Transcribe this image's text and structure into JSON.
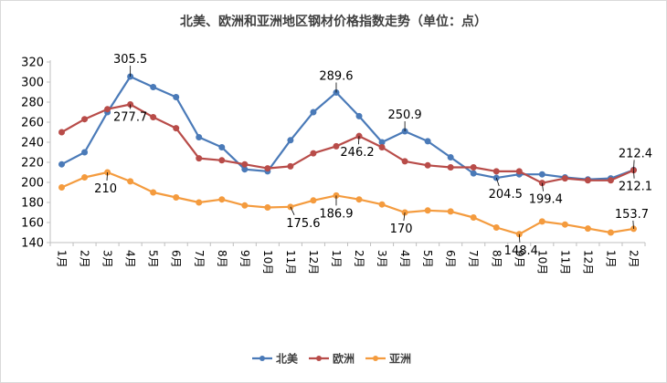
{
  "chart_data": {
    "type": "line",
    "title": "北美、欧洲和亚洲地区钢材价格指数走势（单位：点）",
    "categories": [
      "1月",
      "2月",
      "3月",
      "4月",
      "5月",
      "6月",
      "7月",
      "8月",
      "9月",
      "10月",
      "11月",
      "12月",
      "1月",
      "2月",
      "3月",
      "4月",
      "5月",
      "6月",
      "7月",
      "8月",
      "9月",
      "10月",
      "11月",
      "12月",
      "1月",
      "2月"
    ],
    "ylim": [
      140,
      320
    ],
    "yticks": [
      140,
      160,
      180,
      200,
      220,
      240,
      260,
      280,
      300,
      320
    ],
    "grid": false,
    "legend_position": "bottom",
    "series": [
      {
        "name": "北美",
        "color": "#4a7ab8",
        "values": [
          218,
          230,
          270,
          305.5,
          295,
          285,
          245,
          235,
          213,
          211,
          242,
          270,
          289.6,
          266,
          240,
          250.9,
          241,
          225,
          209,
          204.5,
          208,
          208,
          205,
          203,
          204,
          212.4
        ]
      },
      {
        "name": "欧洲",
        "color": "#b84c49",
        "values": [
          250,
          263,
          273,
          277.7,
          265,
          254,
          224,
          222,
          218,
          214,
          216,
          229,
          236,
          246.2,
          235,
          221,
          217,
          215,
          215,
          211,
          211,
          199.4,
          204,
          202,
          202,
          212.1
        ]
      },
      {
        "name": "亚洲",
        "color": "#f49b3e",
        "values": [
          195,
          205,
          210,
          201,
          190,
          185,
          180,
          183,
          177,
          175,
          175.6,
          182,
          186.9,
          183,
          178,
          170,
          172,
          171,
          165,
          155,
          148.4,
          161,
          158,
          154,
          150,
          153.7
        ]
      }
    ],
    "data_labels": [
      {
        "series": 0,
        "index": 3,
        "text": "305.5"
      },
      {
        "series": 1,
        "index": 3,
        "text": "277.7"
      },
      {
        "series": 2,
        "index": 2,
        "text": "210"
      },
      {
        "series": 0,
        "index": 12,
        "text": "289.6"
      },
      {
        "series": 1,
        "index": 13,
        "text": "246.2"
      },
      {
        "series": 2,
        "index": 10,
        "text": "175.6"
      },
      {
        "series": 2,
        "index": 12,
        "text": "186.9"
      },
      {
        "series": 0,
        "index": 15,
        "text": "250.9"
      },
      {
        "series": 2,
        "index": 15,
        "text": "170"
      },
      {
        "series": 0,
        "index": 19,
        "text": "204.5"
      },
      {
        "series": 1,
        "index": 21,
        "text": "199.4"
      },
      {
        "series": 2,
        "index": 20,
        "text": "148.4"
      },
      {
        "series": 0,
        "index": 25,
        "text": "212.4"
      },
      {
        "series": 1,
        "index": 25,
        "text": "212.1"
      },
      {
        "series": 2,
        "index": 25,
        "text": "153.7"
      }
    ]
  }
}
